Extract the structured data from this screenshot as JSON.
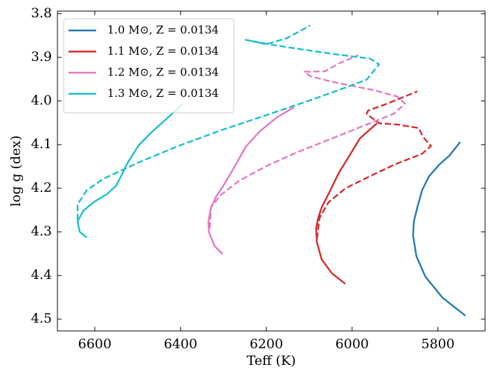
{
  "chart_data": {
    "type": "line",
    "xlabel": "Teff (K)",
    "ylabel": "log g (dex)",
    "xlim": [
      6687,
      5690
    ],
    "ylim": [
      4.527,
      3.794
    ],
    "y_inverted": true,
    "x_inverted": true,
    "xticks": [
      6600,
      6400,
      6200,
      6000,
      5800
    ],
    "yticks": [
      3.8,
      3.9,
      {
        "value": 4,
        "label": "4.0"
      },
      4.1,
      4.2,
      4.3,
      4.4,
      4.5
    ],
    "legend": "upper left",
    "series": [
      {
        "name": "1.0 M⊙, Z = 0.0134",
        "color": "#1f77b4",
        "linestyle": "solid",
        "x": [
          5736,
          5789,
          5829,
          5850,
          5858,
          5856,
          5848,
          5837,
          5821,
          5797,
          5773,
          5748
        ],
        "values": [
          4.492,
          4.451,
          4.403,
          4.356,
          4.308,
          4.276,
          4.244,
          4.205,
          4.173,
          4.146,
          4.125,
          4.094
        ]
      },
      {
        "name": "1.1 M⊙, Z = 0.0134",
        "color": "#d62728",
        "linestyle": "solid",
        "x": [
          6016,
          6047,
          6071,
          6082,
          6084,
          6079,
          6071,
          6055,
          6031,
          6006,
          5982,
          5942
        ],
        "values": [
          4.419,
          4.395,
          4.363,
          4.324,
          4.292,
          4.268,
          4.244,
          4.213,
          4.165,
          4.125,
          4.086,
          4.051
        ]
      },
      {
        "name": "1.2 M⊙, Z = 0.0134",
        "color": "#e377c2",
        "linestyle": "solid",
        "x": [
          6302,
          6321,
          6334,
          6335,
          6329,
          6318,
          6297,
          6273,
          6248,
          6216,
          6176,
          6135
        ],
        "values": [
          4.351,
          4.332,
          4.3,
          4.276,
          4.244,
          4.221,
          4.189,
          4.149,
          4.105,
          4.07,
          4.038,
          4.014
        ]
      },
      {
        "name": "1.3 M⊙, Z = 0.0134",
        "color": "#17becf",
        "linestyle": "solid",
        "x": [
          6619,
          6635,
          6640,
          6627,
          6603,
          6571,
          6550,
          6539,
          6523,
          6498,
          6466,
          6426,
          6394
        ],
        "values": [
          4.313,
          4.3,
          4.276,
          4.252,
          4.232,
          4.213,
          4.194,
          4.173,
          4.141,
          4.102,
          4.07,
          4.035,
          4.006
        ]
      },
      {
        "color": "#d62728",
        "linestyle": "dashed",
        "x": [
          6082,
          6076,
          6055,
          6015,
          5966,
          5902,
          5837,
          5816,
          5834,
          5845,
          5894,
          5937,
          5966,
          5963,
          5918,
          5848
        ],
        "values": [
          4.316,
          4.268,
          4.232,
          4.2,
          4.176,
          4.146,
          4.121,
          4.103,
          4.083,
          4.062,
          4.054,
          4.051,
          4.03,
          4.022,
          4.006,
          3.978
        ]
      },
      {
        "color": "#e377c2",
        "linestyle": "dashed",
        "x": [
          6332,
          6329,
          6308,
          6265,
          6200,
          6127,
          6047,
          5966,
          5902,
          5877,
          5894,
          5950,
          6047,
          6098,
          6111,
          6063,
          6031,
          5985
        ],
        "values": [
          4.292,
          4.244,
          4.217,
          4.184,
          4.149,
          4.117,
          4.086,
          4.054,
          4.029,
          4.006,
          3.99,
          3.975,
          3.956,
          3.943,
          3.933,
          3.932,
          3.914,
          3.895
        ]
      },
      {
        "color": "#17becf",
        "linestyle": "dashed",
        "x": [
          6640,
          6640,
          6619,
          6579,
          6498,
          6402,
          6305,
          6208,
          6111,
          6031,
          5966,
          5937,
          5958,
          6047,
          6176,
          6248,
          6200,
          6152,
          6098
        ],
        "values": [
          4.273,
          4.237,
          4.205,
          4.178,
          4.141,
          4.102,
          4.067,
          4.035,
          4.003,
          3.975,
          3.951,
          3.916,
          3.903,
          3.892,
          3.873,
          3.86,
          3.87,
          3.856,
          3.827
        ]
      }
    ]
  }
}
